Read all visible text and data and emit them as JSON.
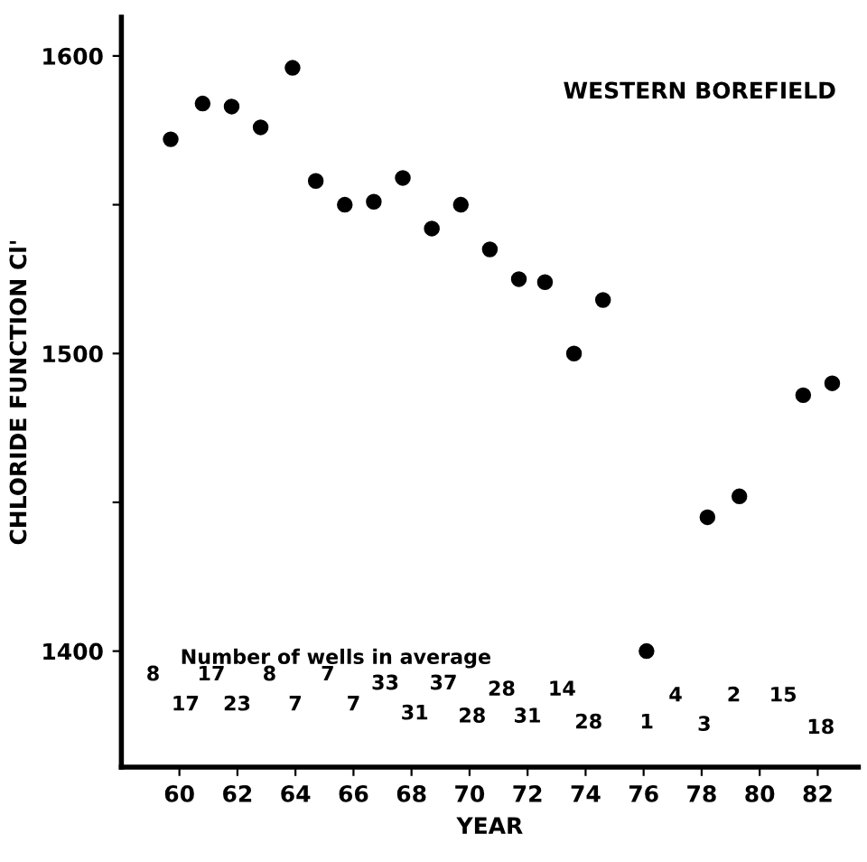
{
  "chart_data": {
    "type": "scatter",
    "title": "WESTERN BOREFIELD",
    "xlabel": "YEAR",
    "ylabel": "CHLORIDE FUNCTION Cl'",
    "series": [
      {
        "color": "#000000",
        "x": [
          59.7,
          60.8,
          61.8,
          62.8,
          63.9,
          64.7,
          65.7,
          66.7,
          67.7,
          68.7,
          69.7,
          70.7,
          71.7,
          72.6,
          73.6,
          74.6,
          76.1,
          78.2,
          79.3,
          81.5,
          82.5
        ],
        "values": [
          1572,
          1584,
          1583,
          1576,
          1596,
          1558,
          1550,
          1551,
          1559,
          1542,
          1550,
          1535,
          1525,
          1524,
          1500,
          1518,
          1400,
          1445,
          1452,
          1486,
          1490
        ]
      }
    ],
    "marker": "circle",
    "xlim": [
      58,
      83.4
    ],
    "ylim": [
      1361,
      1613
    ],
    "xticks": [
      60,
      62,
      64,
      66,
      68,
      70,
      72,
      74,
      76,
      78,
      80,
      82
    ],
    "yticks": [
      1400,
      {
        "value": 1450,
        "label": null
      },
      1500,
      {
        "value": 1550,
        "label": null
      },
      1600
    ],
    "grid": false,
    "legend": false,
    "annotations": [
      "Number of wells in average",
      "8",
      "17",
      "17",
      "23",
      "8",
      "7",
      "7",
      "7",
      "33",
      "31",
      "37",
      "28",
      "28",
      "31",
      "14",
      "28",
      "1",
      "4",
      "3",
      "2",
      "15",
      "18"
    ]
  }
}
